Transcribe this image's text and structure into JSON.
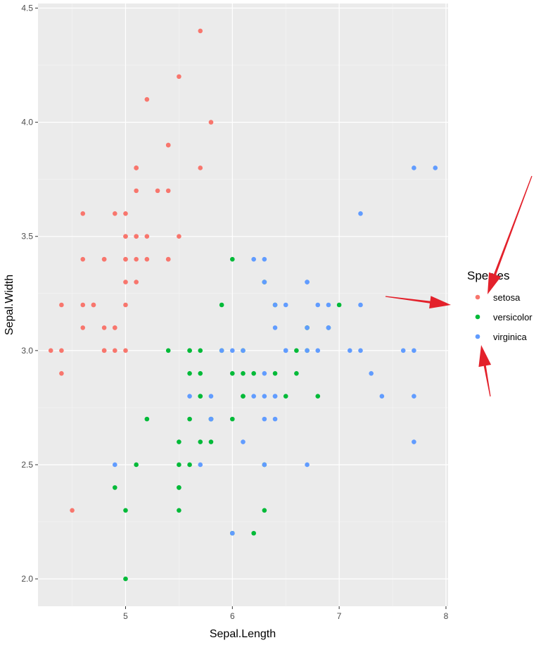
{
  "chart_data": {
    "type": "scatter",
    "title": "",
    "xlabel": "Sepal.Length",
    "ylabel": "Sepal.Width",
    "xlim": [
      4.18,
      8.02
    ],
    "ylim": [
      1.88,
      4.52
    ],
    "x_ticks": [
      5,
      6,
      7,
      8
    ],
    "y_ticks": [
      2.0,
      2.5,
      3.0,
      3.5,
      4.0,
      4.5
    ],
    "grid": true,
    "legend": {
      "title": "Species",
      "placement": "right"
    },
    "series": [
      {
        "name": "setosa",
        "color": "#F8766D",
        "points": [
          [
            5.1,
            3.5
          ],
          [
            4.9,
            3.0
          ],
          [
            4.7,
            3.2
          ],
          [
            4.6,
            3.1
          ],
          [
            5.0,
            3.6
          ],
          [
            5.4,
            3.9
          ],
          [
            4.6,
            3.4
          ],
          [
            5.0,
            3.4
          ],
          [
            4.4,
            2.9
          ],
          [
            4.9,
            3.1
          ],
          [
            5.4,
            3.7
          ],
          [
            4.8,
            3.4
          ],
          [
            4.8,
            3.0
          ],
          [
            4.3,
            3.0
          ],
          [
            5.8,
            4.0
          ],
          [
            5.7,
            4.4
          ],
          [
            5.4,
            3.9
          ],
          [
            5.1,
            3.5
          ],
          [
            5.7,
            3.8
          ],
          [
            5.1,
            3.8
          ],
          [
            5.4,
            3.4
          ],
          [
            5.1,
            3.7
          ],
          [
            4.6,
            3.6
          ],
          [
            5.1,
            3.3
          ],
          [
            4.8,
            3.4
          ],
          [
            5.0,
            3.0
          ],
          [
            5.0,
            3.4
          ],
          [
            5.2,
            3.5
          ],
          [
            5.2,
            3.4
          ],
          [
            4.7,
            3.2
          ],
          [
            4.8,
            3.1
          ],
          [
            5.4,
            3.4
          ],
          [
            5.2,
            4.1
          ],
          [
            5.5,
            4.2
          ],
          [
            4.9,
            3.1
          ],
          [
            5.0,
            3.2
          ],
          [
            5.5,
            3.5
          ],
          [
            4.9,
            3.6
          ],
          [
            4.4,
            3.0
          ],
          [
            5.1,
            3.4
          ],
          [
            5.0,
            3.5
          ],
          [
            4.5,
            2.3
          ],
          [
            4.4,
            3.2
          ],
          [
            5.0,
            3.5
          ],
          [
            5.1,
            3.8
          ],
          [
            4.8,
            3.0
          ],
          [
            5.1,
            3.8
          ],
          [
            4.6,
            3.2
          ],
          [
            5.3,
            3.7
          ],
          [
            5.0,
            3.3
          ]
        ]
      },
      {
        "name": "versicolor",
        "color": "#00BA38",
        "points": [
          [
            7.0,
            3.2
          ],
          [
            6.4,
            3.2
          ],
          [
            6.9,
            3.1
          ],
          [
            5.5,
            2.3
          ],
          [
            6.5,
            2.8
          ],
          [
            5.7,
            2.8
          ],
          [
            6.3,
            3.3
          ],
          [
            4.9,
            2.4
          ],
          [
            6.6,
            2.9
          ],
          [
            5.2,
            2.7
          ],
          [
            5.0,
            2.0
          ],
          [
            5.9,
            3.0
          ],
          [
            6.0,
            2.2
          ],
          [
            6.1,
            2.9
          ],
          [
            5.6,
            2.9
          ],
          [
            6.7,
            3.1
          ],
          [
            5.6,
            3.0
          ],
          [
            5.8,
            2.7
          ],
          [
            6.2,
            2.2
          ],
          [
            5.6,
            2.5
          ],
          [
            5.9,
            3.2
          ],
          [
            6.1,
            2.8
          ],
          [
            6.3,
            2.5
          ],
          [
            6.1,
            2.8
          ],
          [
            6.4,
            2.9
          ],
          [
            6.6,
            3.0
          ],
          [
            6.8,
            2.8
          ],
          [
            6.7,
            3.0
          ],
          [
            6.0,
            2.9
          ],
          [
            5.7,
            2.6
          ],
          [
            5.5,
            2.4
          ],
          [
            5.5,
            2.4
          ],
          [
            5.8,
            2.7
          ],
          [
            6.0,
            2.7
          ],
          [
            5.4,
            3.0
          ],
          [
            6.0,
            3.4
          ],
          [
            6.7,
            3.1
          ],
          [
            6.3,
            2.3
          ],
          [
            5.6,
            3.0
          ],
          [
            5.5,
            2.5
          ],
          [
            5.5,
            2.6
          ],
          [
            6.1,
            3.0
          ],
          [
            5.8,
            2.6
          ],
          [
            5.0,
            2.3
          ],
          [
            5.6,
            2.7
          ],
          [
            5.7,
            3.0
          ],
          [
            5.7,
            2.9
          ],
          [
            6.2,
            2.9
          ],
          [
            5.1,
            2.5
          ],
          [
            5.7,
            2.8
          ]
        ]
      },
      {
        "name": "virginica",
        "color": "#619CFF",
        "points": [
          [
            6.3,
            3.3
          ],
          [
            5.8,
            2.7
          ],
          [
            7.1,
            3.0
          ],
          [
            6.3,
            2.9
          ],
          [
            6.5,
            3.0
          ],
          [
            7.6,
            3.0
          ],
          [
            4.9,
            2.5
          ],
          [
            7.3,
            2.9
          ],
          [
            6.7,
            2.5
          ],
          [
            7.2,
            3.6
          ],
          [
            6.5,
            3.2
          ],
          [
            6.4,
            2.7
          ],
          [
            6.8,
            3.0
          ],
          [
            5.7,
            2.5
          ],
          [
            5.8,
            2.8
          ],
          [
            6.4,
            3.2
          ],
          [
            6.5,
            3.0
          ],
          [
            7.7,
            3.8
          ],
          [
            7.7,
            2.6
          ],
          [
            6.0,
            2.2
          ],
          [
            6.9,
            3.2
          ],
          [
            5.6,
            2.8
          ],
          [
            7.7,
            2.8
          ],
          [
            6.3,
            2.7
          ],
          [
            6.7,
            3.3
          ],
          [
            7.2,
            3.2
          ],
          [
            6.2,
            2.8
          ],
          [
            6.1,
            3.0
          ],
          [
            6.4,
            2.8
          ],
          [
            7.2,
            3.0
          ],
          [
            7.4,
            2.8
          ],
          [
            7.9,
            3.8
          ],
          [
            6.4,
            2.8
          ],
          [
            6.3,
            2.8
          ],
          [
            6.1,
            2.6
          ],
          [
            7.7,
            3.0
          ],
          [
            6.3,
            3.4
          ],
          [
            6.4,
            3.1
          ],
          [
            6.0,
            3.0
          ],
          [
            6.9,
            3.1
          ],
          [
            6.7,
            3.1
          ],
          [
            6.9,
            3.1
          ],
          [
            5.8,
            2.7
          ],
          [
            6.8,
            3.2
          ],
          [
            6.7,
            3.3
          ],
          [
            6.7,
            3.0
          ],
          [
            6.3,
            2.5
          ],
          [
            6.5,
            3.0
          ],
          [
            6.2,
            3.4
          ],
          [
            5.9,
            3.0
          ]
        ]
      }
    ]
  },
  "annotations": {
    "arrow_color": "#e3212b",
    "arrows": [
      "arrow-to-legend-title",
      "arrow-to-legend-keys",
      "arrow-to-legend-bottom"
    ]
  }
}
